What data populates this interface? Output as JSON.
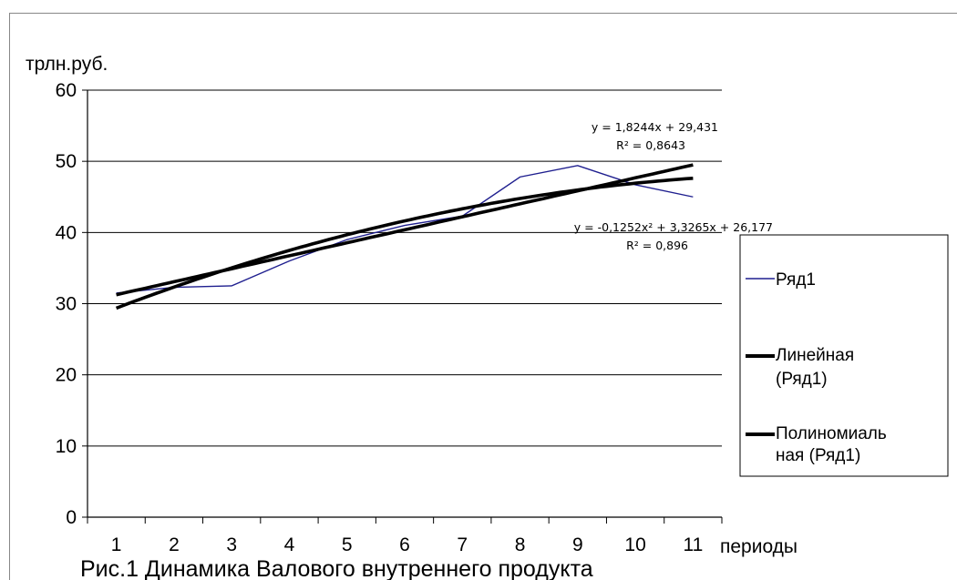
{
  "chart_data": {
    "type": "line",
    "ylabel": "трлн.руб.",
    "xlabel": "периоды",
    "caption": "Рис.1 Динамика Валового внутреннего продукта",
    "categories": [
      "1",
      "2",
      "3",
      "4",
      "5",
      "6",
      "7",
      "8",
      "9",
      "10",
      "11"
    ],
    "yticks": [
      "0",
      "10",
      "20",
      "30",
      "40",
      "50",
      "60"
    ],
    "ylim": [
      0,
      60
    ],
    "grid": true,
    "legend_position": "right",
    "series": [
      {
        "name": "Ряд1",
        "values": [
          31.5,
          32.3,
          32.5,
          36.0,
          39.0,
          41.0,
          42.3,
          47.8,
          49.4,
          46.7,
          45.0
        ],
        "color": "#1f1f8f"
      },
      {
        "name": "Линейная (Ряд1)",
        "legend_lines": [
          "Линейная",
          "(Ряд1)"
        ],
        "trend": "linear",
        "coefficients": {
          "a": 1.8244,
          "b": 29.431
        },
        "color": "#000000"
      },
      {
        "name": "Полиномиальная (Ряд1)",
        "legend_lines": [
          "Полиномиаль",
          "ная (Ряд1)"
        ],
        "trend": "poly2",
        "coefficients": {
          "a": -0.1252,
          "b": 3.3265,
          "c": 26.177
        },
        "color": "#000000"
      }
    ],
    "annotations": [
      {
        "id": "linear-eq",
        "lines": [
          "y = 1,8244x + 29,431",
          "R² = 0,8643"
        ]
      },
      {
        "id": "poly-eq",
        "lines": [
          "y = -0,1252x² + 3,3265x + 26,177",
          "R² = 0,896"
        ]
      }
    ]
  }
}
